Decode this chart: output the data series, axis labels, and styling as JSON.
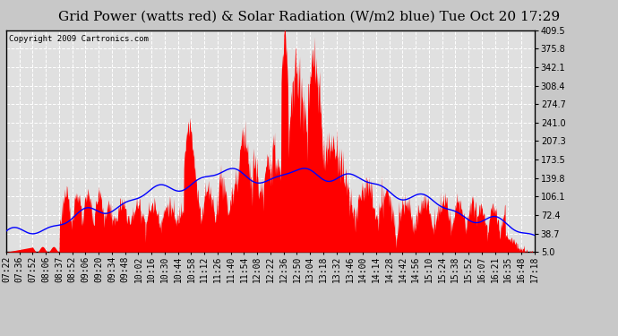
{
  "title": "Grid Power (watts red) & Solar Radiation (W/m2 blue) Tue Oct 20 17:29",
  "copyright": "Copyright 2009 Cartronics.com",
  "yticks": [
    5.0,
    38.7,
    72.4,
    106.1,
    139.8,
    173.5,
    207.3,
    241.0,
    274.7,
    308.4,
    342.1,
    375.8,
    409.5
  ],
  "x_labels": [
    "07:22",
    "07:36",
    "07:52",
    "08:06",
    "08:37",
    "08:52",
    "09:06",
    "09:20",
    "09:34",
    "09:48",
    "10:02",
    "10:16",
    "10:30",
    "10:44",
    "10:58",
    "11:12",
    "11:26",
    "11:40",
    "11:54",
    "12:08",
    "12:22",
    "12:36",
    "12:50",
    "13:04",
    "13:18",
    "13:32",
    "13:46",
    "14:00",
    "14:14",
    "14:28",
    "14:42",
    "14:56",
    "15:10",
    "15:24",
    "15:38",
    "15:52",
    "16:07",
    "16:21",
    "16:35",
    "16:48",
    "17:18"
  ],
  "bg_color": "#c8c8c8",
  "plot_bg": "#e0e0e0",
  "grid_color": "white",
  "red_color": "red",
  "blue_color": "blue",
  "title_fontsize": 11,
  "tick_fontsize": 7,
  "ymin": 5.0,
  "ymax": 409.5,
  "total_minutes": 596
}
